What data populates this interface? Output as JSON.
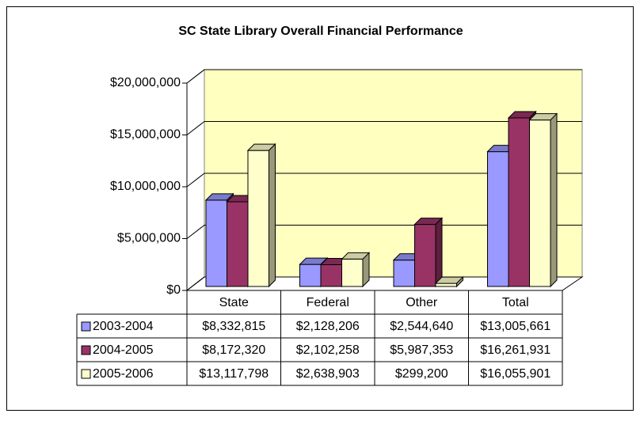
{
  "chart_data": {
    "type": "bar3d",
    "title": "SC State Library Overall Financial Performance",
    "categories": [
      "State",
      "Federal",
      "Other",
      "Total"
    ],
    "series": [
      {
        "name": "2003-2004",
        "color": "#9999ff",
        "values": [
          8332815,
          2128206,
          2544640,
          13005661
        ],
        "value_labels": [
          "$8,332,815",
          "$2,128,206",
          "$2,544,640",
          "$13,005,661"
        ]
      },
      {
        "name": "2004-2005",
        "color": "#993366",
        "values": [
          8172320,
          2102258,
          5987353,
          16261931
        ],
        "value_labels": [
          "$8,172,320",
          "$2,102,258",
          "$5,987,353",
          "$16,261,931"
        ]
      },
      {
        "name": "2005-2006",
        "color": "#ffffcc",
        "values": [
          13117798,
          2638903,
          299200,
          16055901
        ],
        "value_labels": [
          "$13,117,798",
          "$2,638,903",
          "$299,200",
          "$16,055,901"
        ]
      }
    ],
    "ylim": [
      0,
      20000000
    ],
    "yticks": [
      {
        "value": 0,
        "label": "$0"
      },
      {
        "value": 5000000,
        "label": "$5,000,000"
      },
      {
        "value": 10000000,
        "label": "$10,000,000"
      },
      {
        "value": 15000000,
        "label": "$15,000,000"
      },
      {
        "value": 20000000,
        "label": "$20,000,000"
      }
    ],
    "grid": true,
    "legend": "table",
    "wall_color": "#ffffc0"
  }
}
